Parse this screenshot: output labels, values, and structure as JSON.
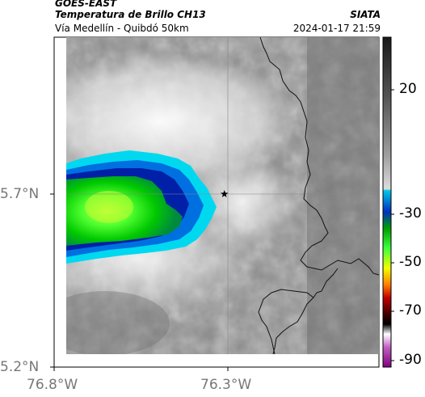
{
  "header": {
    "satellite": "GOES-EAST",
    "product": "Temperatura de Brillo CH13",
    "source": "SIATA",
    "location": "Vía Medellín - Quibdó 50km",
    "datetime": "2024-01-17 21:59"
  },
  "axes": {
    "y_ticks": [
      {
        "value": 5.7,
        "label": "5.7°N"
      },
      {
        "value": 5.2,
        "label": "5.2°N"
      }
    ],
    "x_ticks": [
      {
        "value": -76.8,
        "label": "76.8°W"
      },
      {
        "value": -76.3,
        "label": "76.3°W"
      }
    ]
  },
  "marker": {
    "name": "star-marker",
    "lon": -76.31,
    "lat": 5.7
  },
  "colorbar": {
    "labels": [
      "20",
      "-30",
      "-50",
      "-70",
      "-90"
    ],
    "colors": [
      "#1a1a1a",
      "#555555",
      "#9a9a9a",
      "#d8d8d8",
      "#00c8e8",
      "#0030c0",
      "#00a000",
      "#40ff40",
      "#f0ff00",
      "#ff8000",
      "#c00000",
      "#500000",
      "#000000",
      "#ffffff",
      "#c060c0",
      "#800080"
    ]
  }
}
